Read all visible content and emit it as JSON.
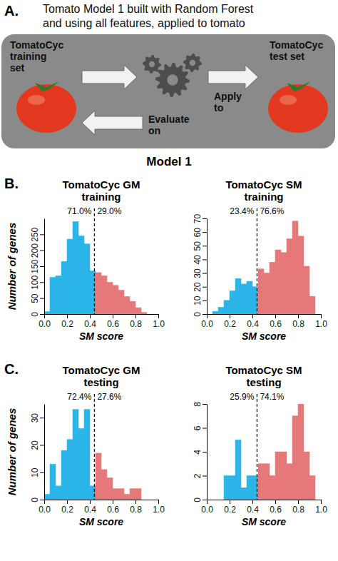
{
  "diagram": {
    "letter": "A.",
    "title": [
      "Tomato Model 1 built with Random Forest",
      "and using all features, applied to tomato"
    ],
    "source_label": [
      "TomatoCyc",
      "training",
      "set"
    ],
    "target_label": [
      "TomatoCyc",
      "test set"
    ],
    "apply_label": [
      "Apply",
      "to"
    ],
    "evaluate_label": [
      "Evaluate",
      "on"
    ],
    "caption": "Model 1"
  },
  "chart_data": [
    {
      "type": "histogram",
      "panel_letter": "B.",
      "title": "TomatoCyc GM training",
      "x_label": "SM score",
      "y_label": "Number of genes",
      "bins": [
        0,
        0.05,
        0.1,
        0.15,
        0.2,
        0.25,
        0.3,
        0.35,
        0.4,
        0.45,
        0.5,
        0.55,
        0.6,
        0.65,
        0.7,
        0.75,
        0.8,
        0.85,
        0.9
      ],
      "counts": [
        8,
        115,
        120,
        165,
        235,
        290,
        245,
        220,
        135,
        130,
        120,
        100,
        90,
        75,
        55,
        40,
        20,
        5
      ],
      "colors": [
        "#2bb5e8",
        "#2bb5e8",
        "#2bb5e8",
        "#2bb5e8",
        "#2bb5e8",
        "#2bb5e8",
        "#2bb5e8",
        "#2bb5e8",
        "#2bb5e8",
        "#e6787a",
        "#e6787a",
        "#e6787a",
        "#e6787a",
        "#e6787a",
        "#e6787a",
        "#e6787a",
        "#e6787a",
        "#e6787a"
      ],
      "threshold": 0.44,
      "annotations": [
        "71.0%",
        "29.0%"
      ],
      "xlim": [
        0,
        1
      ],
      "xticks": [
        {
          "value": 0,
          "label": "0.0"
        },
        0.2,
        0.4,
        0.6,
        0.8,
        {
          "value": 1,
          "label": "1.0"
        }
      ],
      "ylim": [
        0,
        300
      ],
      "yticks": [
        0,
        50,
        100,
        150,
        200,
        250
      ],
      "grid": false
    },
    {
      "type": "histogram",
      "title": "TomatoCyc SM training",
      "x_label": "SM score",
      "bins": [
        0.05,
        0.1,
        0.15,
        0.2,
        0.25,
        0.3,
        0.35,
        0.4,
        0.45,
        0.5,
        0.55,
        0.6,
        0.65,
        0.7,
        0.75,
        0.8,
        0.85,
        0.9,
        0.95
      ],
      "counts": [
        2,
        5,
        10,
        17,
        26,
        22,
        24,
        20,
        33,
        30,
        38,
        47,
        45,
        55,
        68,
        57,
        35,
        13
      ],
      "colors": [
        "#2bb5e8",
        "#2bb5e8",
        "#2bb5e8",
        "#2bb5e8",
        "#2bb5e8",
        "#2bb5e8",
        "#2bb5e8",
        "#2bb5e8",
        "#e6787a",
        "#e6787a",
        "#e6787a",
        "#e6787a",
        "#e6787a",
        "#e6787a",
        "#e6787a",
        "#e6787a",
        "#e6787a",
        "#e6787a"
      ],
      "threshold": 0.44,
      "annotations": [
        "23.4%",
        "76.6%"
      ],
      "xlim": [
        0,
        1
      ],
      "xticks": [
        {
          "value": 0,
          "label": "0.0"
        },
        0.2,
        0.4,
        0.6,
        0.8,
        {
          "value": 1,
          "label": "1.0"
        }
      ],
      "ylim": [
        0,
        70
      ],
      "yticks": [
        0,
        10,
        20,
        30,
        40,
        50,
        60,
        70
      ],
      "grid": false
    },
    {
      "type": "histogram",
      "panel_letter": "C.",
      "title": "TomatoCyc GM testing",
      "x_label": "SM score",
      "y_label": "Number of genes",
      "bins": [
        0,
        0.05,
        0.1,
        0.15,
        0.2,
        0.25,
        0.3,
        0.35,
        0.4,
        0.45,
        0.5,
        0.55,
        0.6,
        0.65,
        0.7,
        0.75,
        0.8,
        0.85
      ],
      "counts": [
        2,
        13,
        5,
        18,
        22,
        33,
        26,
        33,
        5,
        17,
        11,
        8,
        4,
        4,
        2,
        4,
        4
      ],
      "colors": [
        "#2bb5e8",
        "#2bb5e8",
        "#2bb5e8",
        "#2bb5e8",
        "#2bb5e8",
        "#2bb5e8",
        "#2bb5e8",
        "#2bb5e8",
        "#2bb5e8",
        "#e6787a",
        "#e6787a",
        "#e6787a",
        "#e6787a",
        "#e6787a",
        "#e6787a",
        "#e6787a",
        "#e6787a"
      ],
      "threshold": 0.44,
      "annotations": [
        "72.4%",
        "27.6%"
      ],
      "xlim": [
        0,
        1
      ],
      "xticks": [
        {
          "value": 0,
          "label": "0.0"
        },
        0.2,
        0.4,
        0.6,
        0.8,
        {
          "value": 1,
          "label": "1.0"
        }
      ],
      "ylim": [
        0,
        35
      ],
      "yticks": [
        0,
        10,
        20,
        30
      ],
      "grid": false
    },
    {
      "type": "histogram",
      "title": "TomatoCyc SM testing",
      "x_label": "SM score",
      "bins": [
        0.15,
        0.2,
        0.25,
        0.3,
        0.35,
        0.4,
        0.45,
        0.5,
        0.55,
        0.6,
        0.65,
        0.7,
        0.75,
        0.8,
        0.85,
        0.9,
        0.95
      ],
      "counts": [
        2,
        2,
        5,
        1,
        2,
        2,
        3,
        3,
        2,
        4,
        4,
        3,
        7,
        8,
        4,
        2
      ],
      "colors": [
        "#2bb5e8",
        "#2bb5e8",
        "#2bb5e8",
        "#2bb5e8",
        "#2bb5e8",
        "#2bb5e8",
        "#e6787a",
        "#e6787a",
        "#e6787a",
        "#e6787a",
        "#e6787a",
        "#e6787a",
        "#e6787a",
        "#e6787a",
        "#e6787a",
        "#e6787a"
      ],
      "threshold": 0.44,
      "annotations": [
        "25.9%",
        "74.1%"
      ],
      "xlim": [
        0,
        1
      ],
      "xticks": [
        {
          "value": 0,
          "label": "0.0"
        },
        0.2,
        0.4,
        0.6,
        0.8,
        {
          "value": 1,
          "label": "1.0"
        }
      ],
      "ylim": [
        0,
        8
      ],
      "yticks": [
        0,
        2,
        4,
        6,
        8
      ],
      "grid": false
    }
  ]
}
